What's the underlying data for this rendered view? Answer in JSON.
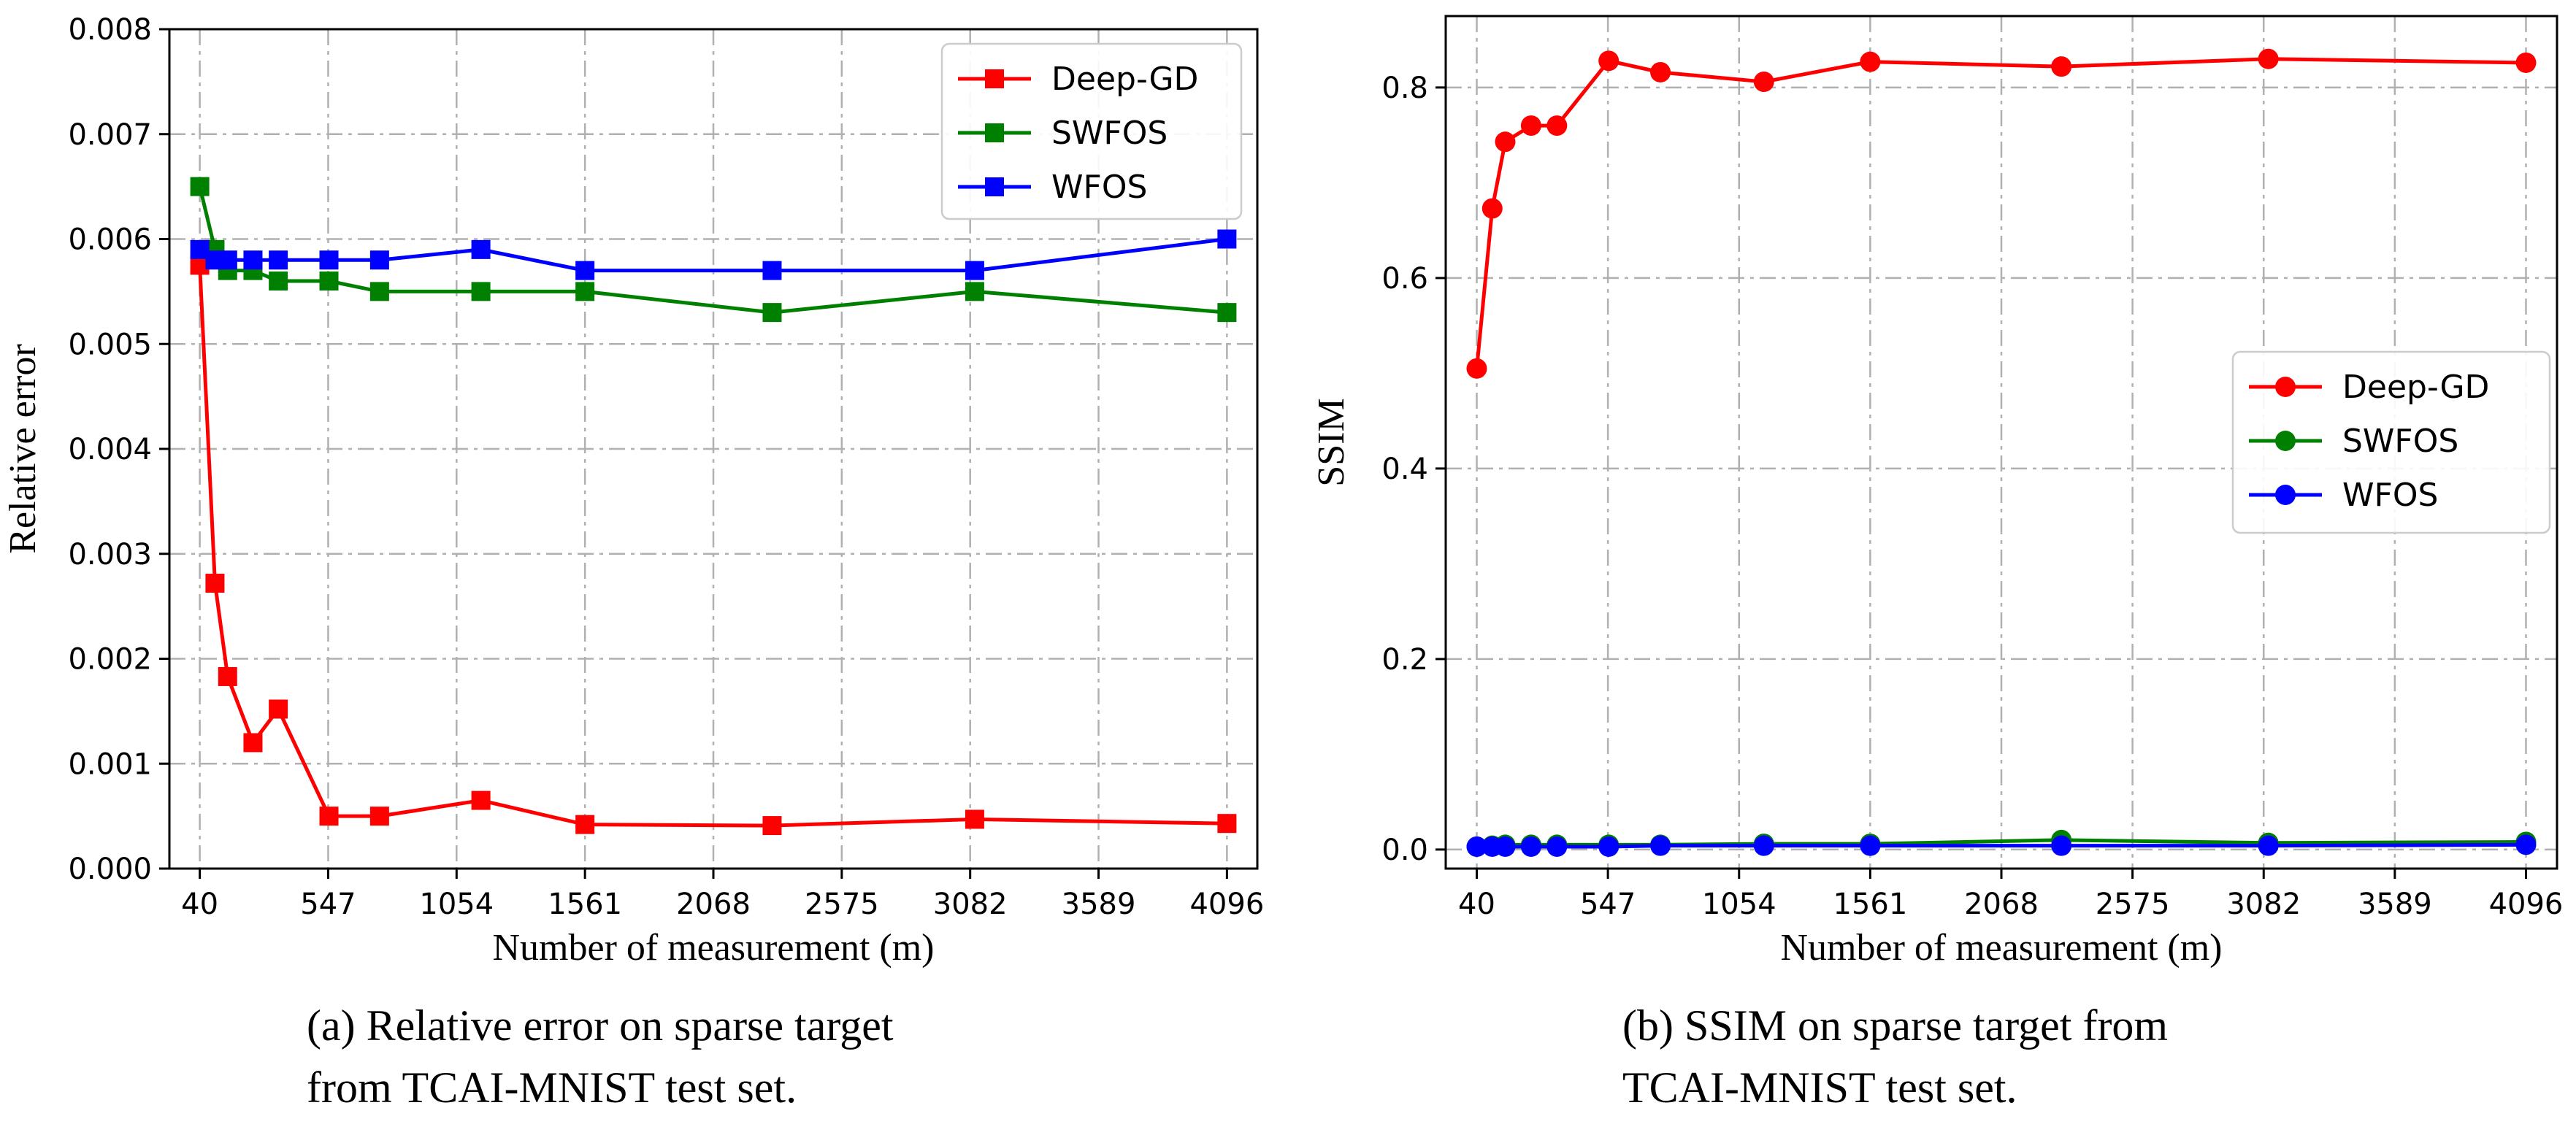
{
  "chart_data": [
    {
      "type": "line",
      "title": "",
      "caption_line1": "(a) Relative error  on  sparse target",
      "caption_line2": "from TCAI-MNIST test set.",
      "xlabel": "Number of measurement (m)",
      "ylabel": "Relative error",
      "xlim": [
        -80,
        4216
      ],
      "ylim": [
        0,
        0.008
      ],
      "xticks": [
        40,
        547,
        1054,
        1561,
        2068,
        2575,
        3082,
        3589,
        4096
      ],
      "xtick_labels": [
        "40",
        "547",
        "1054",
        "1561",
        "2068",
        "2575",
        "3082",
        "3589",
        "4096"
      ],
      "yticks": [
        0,
        0.001,
        0.002,
        0.003,
        0.004,
        0.005,
        0.006,
        0.007,
        0.008
      ],
      "ytick_labels": [
        "0.000",
        "0.001",
        "0.002",
        "0.003",
        "0.004",
        "0.005",
        "0.006",
        "0.007",
        "0.008"
      ],
      "grid": true,
      "marker": "square",
      "legend_position": "top-right",
      "x": [
        40,
        100,
        150,
        250,
        350,
        550,
        750,
        1150,
        1561,
        2300,
        3100,
        4096
      ],
      "series": [
        {
          "name": "Deep-GD",
          "color": "#ff0000",
          "values": [
            0.00575,
            0.00272,
            0.00183,
            0.0012,
            0.00152,
            0.0005,
            0.0005,
            0.00065,
            0.00042,
            0.00041,
            0.00047,
            0.00043
          ]
        },
        {
          "name": "SWFOS",
          "color": "#008000",
          "values": [
            0.0065,
            0.0059,
            0.0057,
            0.0057,
            0.0056,
            0.0056,
            0.0055,
            0.0055,
            0.0055,
            0.0053,
            0.0055,
            0.0053
          ]
        },
        {
          "name": "WFOS",
          "color": "#0000ff",
          "values": [
            0.0059,
            0.0058,
            0.0058,
            0.0058,
            0.0058,
            0.0058,
            0.0058,
            0.0059,
            0.0057,
            0.0057,
            0.0057,
            0.006
          ]
        }
      ]
    },
    {
      "type": "line",
      "title": "",
      "caption_line1": "(b) SSIM on sparse target from",
      "caption_line2": "TCAI-MNIST test set.",
      "xlabel": "Number of measurement (m)",
      "ylabel": "SSIM",
      "xlim": [
        -80,
        4216
      ],
      "ylim": [
        -0.02,
        0.875
      ],
      "xticks": [
        40,
        547,
        1054,
        1561,
        2068,
        2575,
        3082,
        3589,
        4096
      ],
      "xtick_labels": [
        "40",
        "547",
        "1054",
        "1561",
        "2068",
        "2575",
        "3082",
        "3589",
        "4096"
      ],
      "yticks": [
        0,
        0.2,
        0.4,
        0.6,
        0.8
      ],
      "ytick_labels": [
        "0.0",
        "0.2",
        "0.4",
        "0.6",
        "0.8"
      ],
      "grid": true,
      "marker": "circle",
      "legend_position": "center-right",
      "x": [
        40,
        100,
        150,
        250,
        350,
        550,
        750,
        1150,
        1561,
        2300,
        3100,
        4096
      ],
      "series": [
        {
          "name": "Deep-GD",
          "color": "#ff0000",
          "values": [
            0.505,
            0.673,
            0.743,
            0.76,
            0.76,
            0.828,
            0.816,
            0.806,
            0.827,
            0.822,
            0.83,
            0.826
          ]
        },
        {
          "name": "SWFOS",
          "color": "#008000",
          "values": [
            0.003,
            0.004,
            0.005,
            0.005,
            0.005,
            0.005,
            0.005,
            0.006,
            0.006,
            0.01,
            0.007,
            0.008
          ]
        },
        {
          "name": "WFOS",
          "color": "#0000ff",
          "values": [
            0.003,
            0.003,
            0.003,
            0.003,
            0.003,
            0.003,
            0.004,
            0.004,
            0.004,
            0.004,
            0.004,
            0.005
          ]
        }
      ]
    }
  ]
}
